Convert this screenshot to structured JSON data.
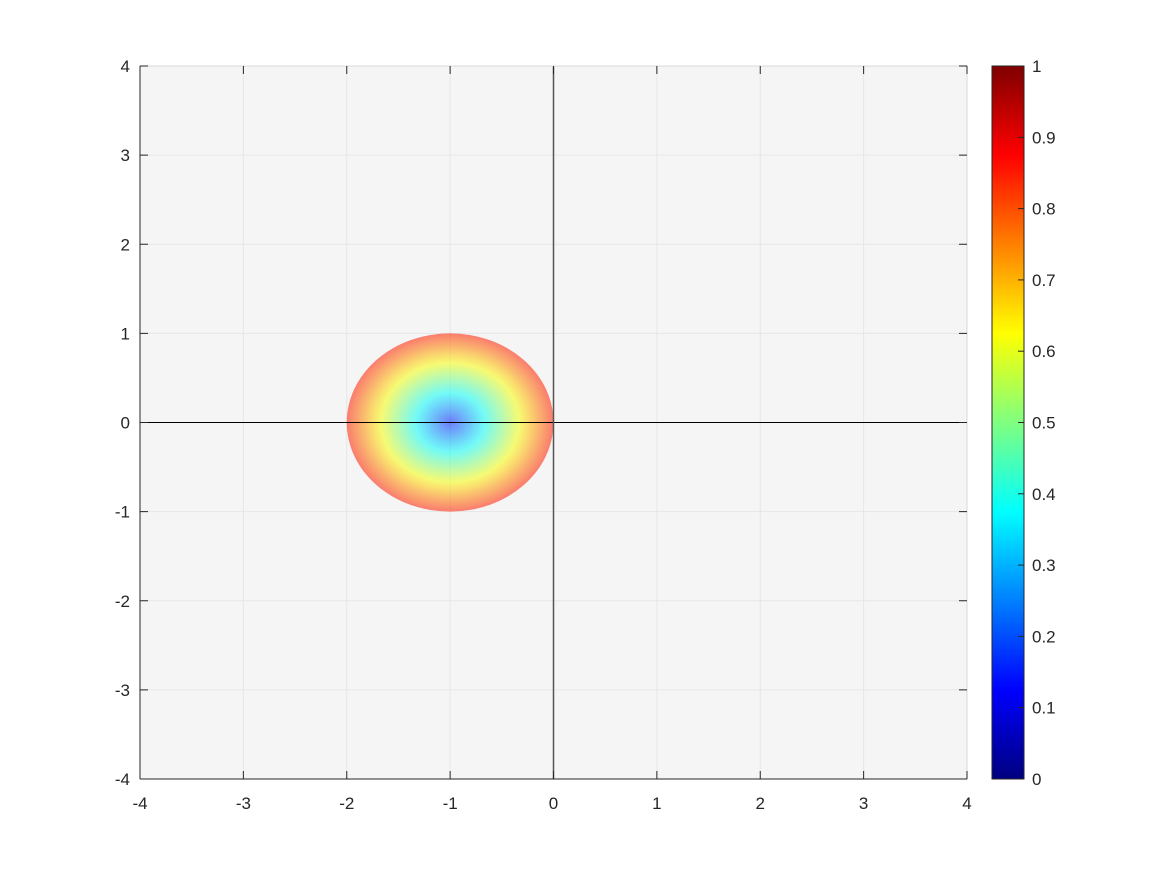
{
  "chart_data": {
    "type": "heatmap",
    "title": "",
    "xlabel": "",
    "ylabel": "",
    "xlim": [
      -4,
      4
    ],
    "ylim": [
      -4,
      4
    ],
    "xticks": [
      -4,
      -3,
      -2,
      -1,
      0,
      1,
      2,
      3,
      4
    ],
    "yticks": [
      -4,
      -3,
      -2,
      -1,
      0,
      1,
      2,
      3,
      4
    ],
    "grid": true,
    "background": "#f5f5f5",
    "field": {
      "shape": "disk",
      "center": [
        -1,
        0
      ],
      "radius": 1,
      "value_at_center": 0.15,
      "value_at_edge": 0.85,
      "opacity": 0.55,
      "outside": "empty"
    },
    "reference_lines": [
      {
        "orientation": "horizontal",
        "value": 0,
        "color": "#000000"
      },
      {
        "orientation": "vertical",
        "value": 0,
        "color": "#555555"
      }
    ],
    "colorbar": {
      "colormap": "jet",
      "limits": [
        0,
        1
      ],
      "ticks": [
        0,
        0.1,
        0.2,
        0.3,
        0.4,
        0.5,
        0.6,
        0.7,
        0.8,
        0.9,
        1
      ],
      "tick_labels": [
        "0",
        "0.1",
        "0.2",
        "0.3",
        "0.4",
        "0.5",
        "0.6",
        "0.7",
        "0.8",
        "0.9",
        "1"
      ],
      "location": "right"
    }
  }
}
